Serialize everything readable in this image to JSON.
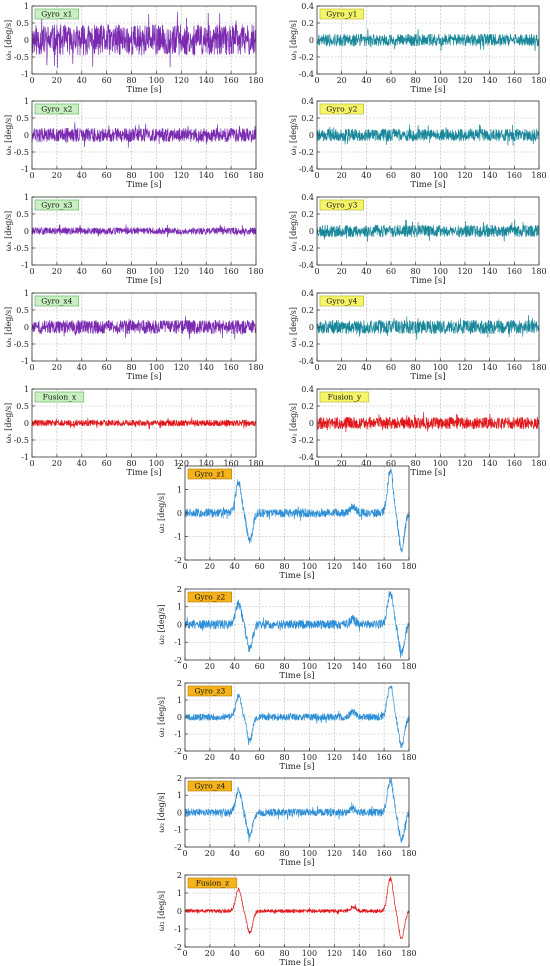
{
  "chart_data": [
    {
      "type": "line",
      "badge": "Gyro_x1",
      "badge_color": "#c8f0c0",
      "badge_border": "#5fae5a",
      "color": "#7a2ab0",
      "ylabel": "ωₓ [deg/s]",
      "xlabel": "Time [s]",
      "xlim": [
        0,
        180
      ],
      "ylim": [
        -1,
        1
      ],
      "yticks": [
        -1,
        -0.5,
        0,
        0.5,
        1
      ],
      "xticks": [
        0,
        20,
        40,
        60,
        80,
        100,
        120,
        140,
        160,
        180
      ],
      "grid": true,
      "signal": {
        "noise_amplitude": 0.45,
        "seed": 11
      }
    },
    {
      "type": "line",
      "badge": "Gyro_y1",
      "badge_color": "#f5f56a",
      "badge_border": "#b5b520",
      "color": "#18879a",
      "ylabel": "ωᵧ [deg/s]",
      "xlabel": "Time [s]",
      "xlim": [
        0,
        180
      ],
      "ylim": [
        -0.4,
        0.4
      ],
      "yticks": [
        -0.4,
        -0.2,
        0,
        0.2,
        0.4
      ],
      "xticks": [
        0,
        20,
        40,
        60,
        80,
        100,
        120,
        140,
        160,
        180
      ],
      "grid": true,
      "signal": {
        "noise_amplitude": 0.07,
        "seed": 21
      }
    },
    {
      "type": "line",
      "badge": "Gyro_x2",
      "badge_color": "#c8f0c0",
      "badge_border": "#5fae5a",
      "color": "#7a2ab0",
      "ylabel": "ωₓ [deg/s]",
      "xlabel": "Time [s]",
      "xlim": [
        0,
        180
      ],
      "ylim": [
        -1,
        1
      ],
      "yticks": [
        -1,
        -0.5,
        0,
        0.5,
        1
      ],
      "xticks": [
        0,
        20,
        40,
        60,
        80,
        100,
        120,
        140,
        160,
        180
      ],
      "grid": true,
      "signal": {
        "noise_amplitude": 0.2,
        "seed": 12
      }
    },
    {
      "type": "line",
      "badge": "Gyro_y2",
      "badge_color": "#f5f56a",
      "badge_border": "#b5b520",
      "color": "#18879a",
      "ylabel": "ωᵧ [deg/s]",
      "xlabel": "Time [s]",
      "xlim": [
        0,
        180
      ],
      "ylim": [
        -0.4,
        0.4
      ],
      "yticks": [
        -0.4,
        -0.2,
        0,
        0.2,
        0.4
      ],
      "xticks": [
        0,
        20,
        40,
        60,
        80,
        100,
        120,
        140,
        160,
        180
      ],
      "grid": true,
      "signal": {
        "noise_amplitude": 0.07,
        "seed": 22
      }
    },
    {
      "type": "line",
      "badge": "Gyro_x3",
      "badge_color": "#c8f0c0",
      "badge_border": "#5fae5a",
      "color": "#7a2ab0",
      "ylabel": "ωₓ [deg/s]",
      "xlabel": "Time [s]",
      "xlim": [
        0,
        180
      ],
      "ylim": [
        -1,
        1
      ],
      "yticks": [
        -1,
        -0.5,
        0,
        0.5,
        1
      ],
      "xticks": [
        0,
        20,
        40,
        60,
        80,
        100,
        120,
        140,
        160,
        180
      ],
      "grid": true,
      "signal": {
        "noise_amplitude": 0.1,
        "seed": 13
      }
    },
    {
      "type": "line",
      "badge": "Gyro_y3",
      "badge_color": "#f5f56a",
      "badge_border": "#b5b520",
      "color": "#18879a",
      "ylabel": "ωᵧ [deg/s]",
      "xlabel": "Time [s]",
      "xlim": [
        0,
        180
      ],
      "ylim": [
        -0.4,
        0.4
      ],
      "yticks": [
        -0.4,
        -0.2,
        0,
        0.2,
        0.4
      ],
      "xticks": [
        0,
        20,
        40,
        60,
        80,
        100,
        120,
        140,
        160,
        180
      ],
      "grid": true,
      "signal": {
        "noise_amplitude": 0.07,
        "seed": 23
      }
    },
    {
      "type": "line",
      "badge": "Gyro_x4",
      "badge_color": "#c8f0c0",
      "badge_border": "#5fae5a",
      "color": "#7a2ab0",
      "ylabel": "ωₓ [deg/s]",
      "xlabel": "Time [s]",
      "xlim": [
        0,
        180
      ],
      "ylim": [
        -1,
        1
      ],
      "yticks": [
        -1,
        -0.5,
        0,
        0.5,
        1
      ],
      "xticks": [
        0,
        20,
        40,
        60,
        80,
        100,
        120,
        140,
        160,
        180
      ],
      "grid": true,
      "signal": {
        "noise_amplitude": 0.2,
        "seed": 14
      }
    },
    {
      "type": "line",
      "badge": "Gyro_y4",
      "badge_color": "#f5f56a",
      "badge_border": "#b5b520",
      "color": "#18879a",
      "ylabel": "ωᵧ [deg/s]",
      "xlabel": "Time [s]",
      "xlim": [
        0,
        180
      ],
      "ylim": [
        -0.4,
        0.4
      ],
      "yticks": [
        -0.4,
        -0.2,
        0,
        0.2,
        0.4
      ],
      "xticks": [
        0,
        20,
        40,
        60,
        80,
        100,
        120,
        140,
        160,
        180
      ],
      "grid": true,
      "signal": {
        "noise_amplitude": 0.08,
        "seed": 24
      }
    },
    {
      "type": "line",
      "badge": "Fusion_x",
      "badge_color": "#c8f0c0",
      "badge_border": "#5fae5a",
      "color": "#e0161b",
      "ylabel": "ωₓ [deg/s]",
      "xlabel": "Time [s]",
      "xlim": [
        0,
        180
      ],
      "ylim": [
        -1,
        1
      ],
      "yticks": [
        -1,
        -0.5,
        0,
        0.5,
        1
      ],
      "xticks": [
        0,
        20,
        40,
        60,
        80,
        100,
        120,
        140,
        160,
        180
      ],
      "grid": true,
      "signal": {
        "noise_amplitude": 0.09,
        "seed": 15
      }
    },
    {
      "type": "line",
      "badge": "Fusion_y",
      "badge_color": "#f5f56a",
      "badge_border": "#b5b520",
      "color": "#e0161b",
      "ylabel": "ωᵧ [deg/s]",
      "xlabel": "Time [s]",
      "xlim": [
        0,
        180
      ],
      "ylim": [
        -0.4,
        0.4
      ],
      "yticks": [
        -0.4,
        -0.2,
        0,
        0.2,
        0.4
      ],
      "xticks": [
        0,
        20,
        40,
        60,
        80,
        100,
        120,
        140,
        160,
        180
      ],
      "grid": true,
      "signal": {
        "noise_amplitude": 0.07,
        "seed": 25
      }
    },
    {
      "type": "line",
      "badge": "Gyro_z1",
      "badge_color": "#f6b21a",
      "badge_border": "#b07a00",
      "color": "#2e8fd6",
      "ylabel": "ω₂ [deg/s]",
      "xlabel": "Time [s]",
      "xlim": [
        0,
        180
      ],
      "ylim": [
        -2,
        2
      ],
      "yticks": [
        -2,
        -1,
        0,
        1,
        2
      ],
      "xticks": [
        0,
        20,
        40,
        60,
        80,
        100,
        120,
        140,
        160,
        180
      ],
      "grid": true,
      "signal": {
        "noise_amplitude": 0.18,
        "seed": 31,
        "events": [
          {
            "t": 43,
            "v": 1.3
          },
          {
            "t": 52,
            "v": -1.2
          },
          {
            "t": 135,
            "v": 0.3
          },
          {
            "t": 165,
            "v": 1.8
          },
          {
            "t": 174,
            "v": -1.5
          }
        ]
      }
    },
    {
      "type": "line",
      "badge": "Gyro_z2",
      "badge_color": "#f6b21a",
      "badge_border": "#b07a00",
      "color": "#2e8fd6",
      "ylabel": "ω₂ [deg/s]",
      "xlabel": "Time [s]",
      "xlim": [
        0,
        180
      ],
      "ylim": [
        -2,
        2
      ],
      "yticks": [
        -2,
        -1,
        0,
        1,
        2
      ],
      "xticks": [
        0,
        20,
        40,
        60,
        80,
        100,
        120,
        140,
        160,
        180
      ],
      "grid": true,
      "signal": {
        "noise_amplitude": 0.25,
        "seed": 32,
        "events": [
          {
            "t": 43,
            "v": 1.2
          },
          {
            "t": 52,
            "v": -1.4
          },
          {
            "t": 135,
            "v": 0.3
          },
          {
            "t": 165,
            "v": 1.8
          },
          {
            "t": 174,
            "v": -1.6
          }
        ]
      }
    },
    {
      "type": "line",
      "badge": "Gyro_z3",
      "badge_color": "#f6b21a",
      "badge_border": "#b07a00",
      "color": "#2e8fd6",
      "ylabel": "ω₂ [deg/s]",
      "xlabel": "Time [s]",
      "xlim": [
        0,
        180
      ],
      "ylim": [
        -2,
        2
      ],
      "yticks": [
        -2,
        -1,
        0,
        1,
        2
      ],
      "xticks": [
        0,
        20,
        40,
        60,
        80,
        100,
        120,
        140,
        160,
        180
      ],
      "grid": true,
      "signal": {
        "noise_amplitude": 0.2,
        "seed": 33,
        "events": [
          {
            "t": 43,
            "v": 1.2
          },
          {
            "t": 52,
            "v": -1.4
          },
          {
            "t": 135,
            "v": 0.3
          },
          {
            "t": 165,
            "v": 1.9
          },
          {
            "t": 174,
            "v": -1.7
          }
        ]
      }
    },
    {
      "type": "line",
      "badge": "Gyro_z4",
      "badge_color": "#f6b21a",
      "badge_border": "#b07a00",
      "color": "#2e8fd6",
      "ylabel": "ω₂ [deg/s]",
      "xlabel": "Time [s]",
      "xlim": [
        0,
        180
      ],
      "ylim": [
        -2,
        2
      ],
      "yticks": [
        -2,
        -1,
        0,
        1,
        2
      ],
      "xticks": [
        0,
        20,
        40,
        60,
        80,
        100,
        120,
        140,
        160,
        180
      ],
      "grid": true,
      "signal": {
        "noise_amplitude": 0.22,
        "seed": 34,
        "events": [
          {
            "t": 43,
            "v": 1.3
          },
          {
            "t": 52,
            "v": -1.4
          },
          {
            "t": 135,
            "v": 0.3
          },
          {
            "t": 165,
            "v": 1.9
          },
          {
            "t": 174,
            "v": -1.6
          }
        ]
      }
    },
    {
      "type": "line",
      "badge": "Fusion_z",
      "badge_color": "#f6b21a",
      "badge_border": "#b07a00",
      "color": "#e0161b",
      "ylabel": "ω₂ [deg/s]",
      "xlabel": "Time [s]",
      "xlim": [
        0,
        180
      ],
      "ylim": [
        -2,
        2
      ],
      "yticks": [
        -2,
        -1,
        0,
        1,
        2
      ],
      "xticks": [
        0,
        20,
        40,
        60,
        80,
        100,
        120,
        140,
        160,
        180
      ],
      "grid": true,
      "signal": {
        "noise_amplitude": 0.1,
        "seed": 35,
        "events": [
          {
            "t": 43,
            "v": 1.2
          },
          {
            "t": 52,
            "v": -1.2
          },
          {
            "t": 135,
            "v": 0.25
          },
          {
            "t": 165,
            "v": 1.8
          },
          {
            "t": 174,
            "v": -1.5
          }
        ]
      }
    }
  ]
}
